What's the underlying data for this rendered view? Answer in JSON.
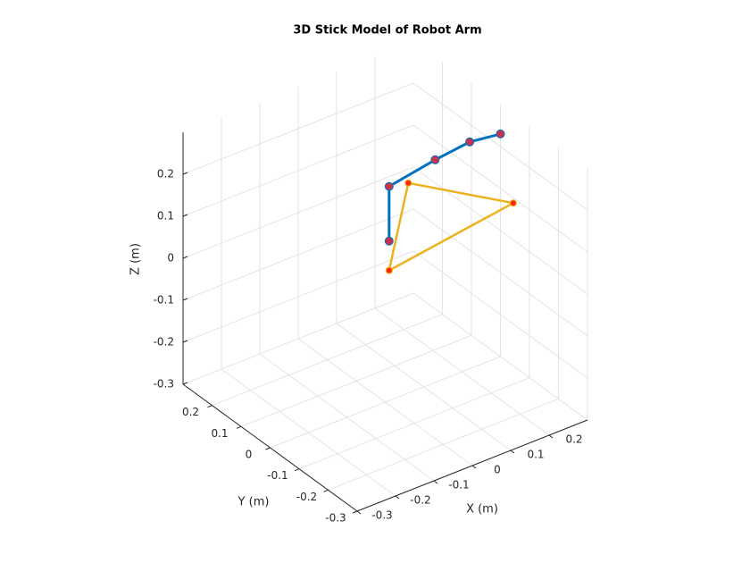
{
  "chart_data": {
    "type": "line3d",
    "title": "3D Stick Model of Robot Arm",
    "xlabel": "X (m)",
    "ylabel": "Y (m)",
    "zlabel": "Z (m)",
    "xlim": [
      -0.3,
      0.3
    ],
    "ylim": [
      -0.3,
      0.3
    ],
    "zlim": [
      -0.3,
      0.3
    ],
    "xticks": [
      -0.3,
      -0.2,
      -0.1,
      0,
      0.1,
      0.2
    ],
    "yticks": [
      -0.3,
      -0.2,
      -0.1,
      0,
      0.1,
      0.2
    ],
    "zticks": [
      -0.3,
      -0.2,
      -0.1,
      0,
      0.1,
      0.2
    ],
    "grid": true,
    "series": [
      {
        "color": "#0072bd",
        "marker_color": "#c8324e",
        "x": [
          0.01,
          0.01,
          0.13,
          0.22,
          0.3
        ],
        "y": [
          0,
          0,
          0,
          0,
          0
        ],
        "z": [
          0.08,
          0.21,
          0.23,
          0.24,
          0.23
        ]
      },
      {
        "color": "#edb120",
        "marker_color": "#ff2a00",
        "x": [
          0.01,
          0.06,
          0.22,
          0.01
        ],
        "y": [
          0,
          0,
          -0.15,
          0
        ],
        "z": [
          0.01,
          0.2,
          0.17,
          0.01
        ]
      }
    ]
  }
}
